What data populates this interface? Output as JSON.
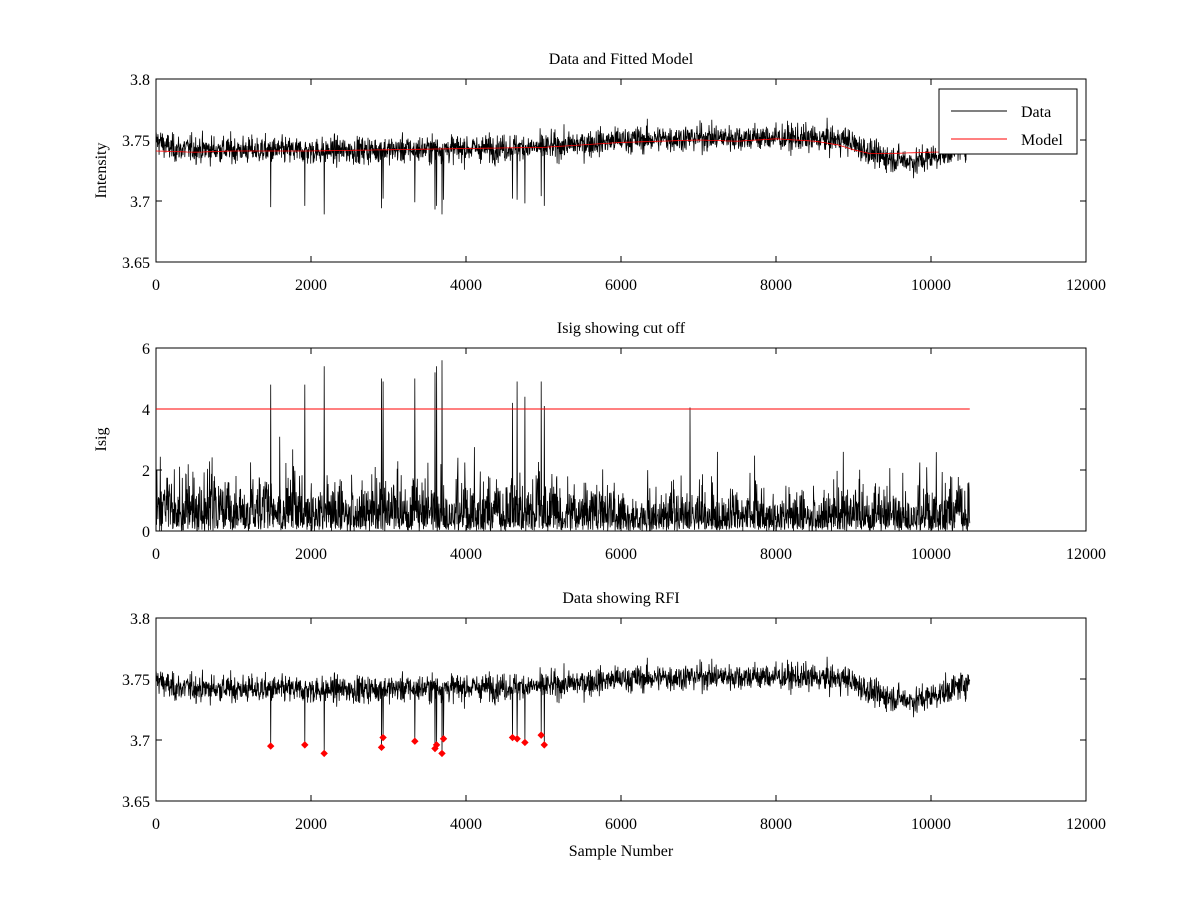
{
  "figure": {
    "background": "#ffffff"
  },
  "chart_data": [
    {
      "type": "line",
      "title": "Data and Fitted Model",
      "xlabel": "",
      "ylabel": "Intensity",
      "xlim": [
        0,
        12000
      ],
      "ylim": [
        3.65,
        3.8
      ],
      "xticks": [
        "0",
        "2000",
        "4000",
        "6000",
        "8000",
        "10000",
        "12000"
      ],
      "yticks": [
        "3.65",
        "3.7",
        "3.75",
        "3.8"
      ],
      "grid": false,
      "legend_position": "top-right",
      "n_samples": 10500,
      "series": [
        {
          "name": "Data",
          "color": "#000000",
          "kind": "noisy",
          "baseline": [
            [
              0,
              3.75
            ],
            [
              200,
              3.743
            ],
            [
              1000,
              3.742
            ],
            [
              2000,
              3.741
            ],
            [
              3000,
              3.742
            ],
            [
              4000,
              3.743
            ],
            [
              5000,
              3.744
            ],
            [
              6000,
              3.75
            ],
            [
              7000,
              3.752
            ],
            [
              8000,
              3.752
            ],
            [
              8900,
              3.75
            ],
            [
              9300,
              3.737
            ],
            [
              9800,
              3.732
            ],
            [
              10200,
              3.74
            ],
            [
              10500,
              3.748
            ]
          ],
          "noise": 0.01,
          "spikes": [
            [
              1480,
              3.695
            ],
            [
              1920,
              3.696
            ],
            [
              2170,
              3.689
            ],
            [
              2910,
              3.694
            ],
            [
              2930,
              3.702
            ],
            [
              3340,
              3.699
            ],
            [
              3600,
              3.693
            ],
            [
              3620,
              3.696
            ],
            [
              3690,
              3.689
            ],
            [
              3710,
              3.701
            ],
            [
              4600,
              3.702
            ],
            [
              4660,
              3.701
            ],
            [
              4760,
              3.698
            ],
            [
              4970,
              3.704
            ],
            [
              5010,
              3.696
            ]
          ]
        },
        {
          "name": "Model",
          "color": "#ff0000",
          "kind": "smooth",
          "points": [
            [
              0,
              3.741
            ],
            [
              500,
              3.74
            ],
            [
              1000,
              3.741
            ],
            [
              2000,
              3.741
            ],
            [
              3000,
              3.742
            ],
            [
              4000,
              3.743
            ],
            [
              5000,
              3.744
            ],
            [
              5500,
              3.746
            ],
            [
              6000,
              3.748
            ],
            [
              6500,
              3.749
            ],
            [
              7000,
              3.75
            ],
            [
              7500,
              3.749
            ],
            [
              8000,
              3.751
            ],
            [
              8500,
              3.749
            ],
            [
              8800,
              3.746
            ],
            [
              9000,
              3.742
            ],
            [
              9200,
              3.739
            ],
            [
              9500,
              3.739
            ],
            [
              10000,
              3.74
            ],
            [
              10500,
              3.741
            ]
          ]
        }
      ]
    },
    {
      "type": "line",
      "title": "Isig showing cut off",
      "xlabel": "",
      "ylabel": "Isig",
      "xlim": [
        0,
        12000
      ],
      "ylim": [
        0,
        6
      ],
      "xticks": [
        "0",
        "2000",
        "4000",
        "6000",
        "8000",
        "10000",
        "12000"
      ],
      "yticks": [
        "0",
        "2",
        "4",
        "6"
      ],
      "grid": false,
      "n_samples": 10500,
      "series": [
        {
          "color": "#000000",
          "kind": "abs-noise",
          "level": [
            [
              0,
              1.2
            ],
            [
              1000,
              0.9
            ],
            [
              3000,
              0.9
            ],
            [
              5000,
              0.9
            ],
            [
              6000,
              0.7
            ],
            [
              8000,
              0.7
            ],
            [
              10000,
              0.8
            ],
            [
              10500,
              1.0
            ]
          ],
          "spikes": [
            [
              1480,
              4.8
            ],
            [
              1920,
              4.8
            ],
            [
              2170,
              5.4
            ],
            [
              2910,
              5.0
            ],
            [
              2930,
              4.9
            ],
            [
              3340,
              5.0
            ],
            [
              3600,
              5.2
            ],
            [
              3620,
              5.4
            ],
            [
              3690,
              5.6
            ],
            [
              4600,
              4.2
            ],
            [
              4660,
              4.9
            ],
            [
              4760,
              4.4
            ],
            [
              4970,
              4.9
            ],
            [
              5010,
              4.1
            ],
            [
              6890,
              4.05
            ]
          ]
        }
      ],
      "cutoff": {
        "y": 4,
        "x": [
          0,
          10500
        ],
        "color": "#ff0000"
      }
    },
    {
      "type": "line",
      "title": "Data showing RFI",
      "xlabel": "Sample Number",
      "ylabel": "",
      "xlim": [
        0,
        12000
      ],
      "ylim": [
        3.65,
        3.8
      ],
      "xticks": [
        "0",
        "2000",
        "4000",
        "6000",
        "8000",
        "10000",
        "12000"
      ],
      "yticks": [
        "3.65",
        "3.7",
        "3.75",
        "3.8"
      ],
      "grid": false,
      "n_samples": 10500,
      "series": [
        {
          "color": "#000000",
          "kind": "noisy",
          "same_as_first": true
        }
      ],
      "markers": {
        "color": "#ff0000",
        "points": [
          [
            1480,
            3.695
          ],
          [
            1920,
            3.696
          ],
          [
            2170,
            3.689
          ],
          [
            2910,
            3.694
          ],
          [
            2930,
            3.702
          ],
          [
            3340,
            3.699
          ],
          [
            3600,
            3.693
          ],
          [
            3620,
            3.696
          ],
          [
            3690,
            3.689
          ],
          [
            3710,
            3.701
          ],
          [
            4600,
            3.702
          ],
          [
            4660,
            3.701
          ],
          [
            4760,
            3.698
          ],
          [
            4970,
            3.704
          ],
          [
            5010,
            3.696
          ]
        ]
      }
    }
  ]
}
